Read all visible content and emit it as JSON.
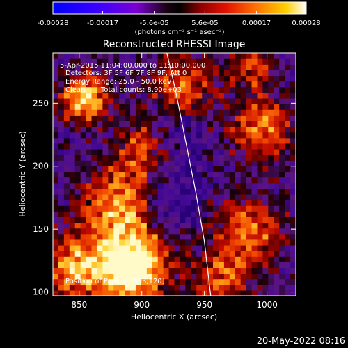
{
  "colorbar": {
    "ticks": [
      "-0.00028",
      "-0.00017",
      "-5.6e-05",
      "5.6e-05",
      "0.00017",
      "0.00028"
    ],
    "tick_values": [
      -0.00028,
      -0.00017,
      -5.6e-05,
      5.6e-05,
      0.00017,
      0.00028
    ],
    "range": [
      -0.00028,
      0.00028
    ],
    "unit_label": "(photons cm⁻² s⁻¹ asec⁻²)"
  },
  "annotations": {
    "time": "5-Apr-2015 11:04:00.000 to 11:10:00.000",
    "detectors": "Detectors: 3F 5F 6F 7F 8F 9F, Att 0",
    "energy": "Energy Range: 25.0 - 50.0 keV",
    "clean": "Clean",
    "counts": "Total counts: 8.90e+03",
    "peak": "Position of Peak = [893,120]"
  },
  "footer": {
    "timestamp": "20-May-2022 08:16"
  },
  "chart_data": {
    "type": "heatmap",
    "title": "Reconstructed RHESSI Image",
    "xlabel": "Heliocentric X (arcsec)",
    "ylabel": "Heliocentric Y (arcsec)",
    "xlim": [
      829,
      1023
    ],
    "ylim": [
      97,
      290
    ],
    "xticks": [
      850,
      900,
      950,
      1000
    ],
    "yticks": [
      100,
      150,
      200,
      250
    ],
    "xtick_labels": [
      "850",
      "900",
      "950",
      "1000"
    ],
    "ytick_labels": [
      "100",
      "150",
      "200",
      "250"
    ],
    "colormap": "blue-purple-red-yellow-white",
    "peak": {
      "x": 893,
      "y": 120
    },
    "limb_curve": {
      "x": [
        920,
        927,
        935,
        943,
        950,
        955
      ],
      "y": [
        290,
        260,
        220,
        180,
        140,
        97
      ]
    },
    "colors": {
      "limb": "#ffffff",
      "frame": "#ffffff",
      "background": "#000000"
    }
  }
}
